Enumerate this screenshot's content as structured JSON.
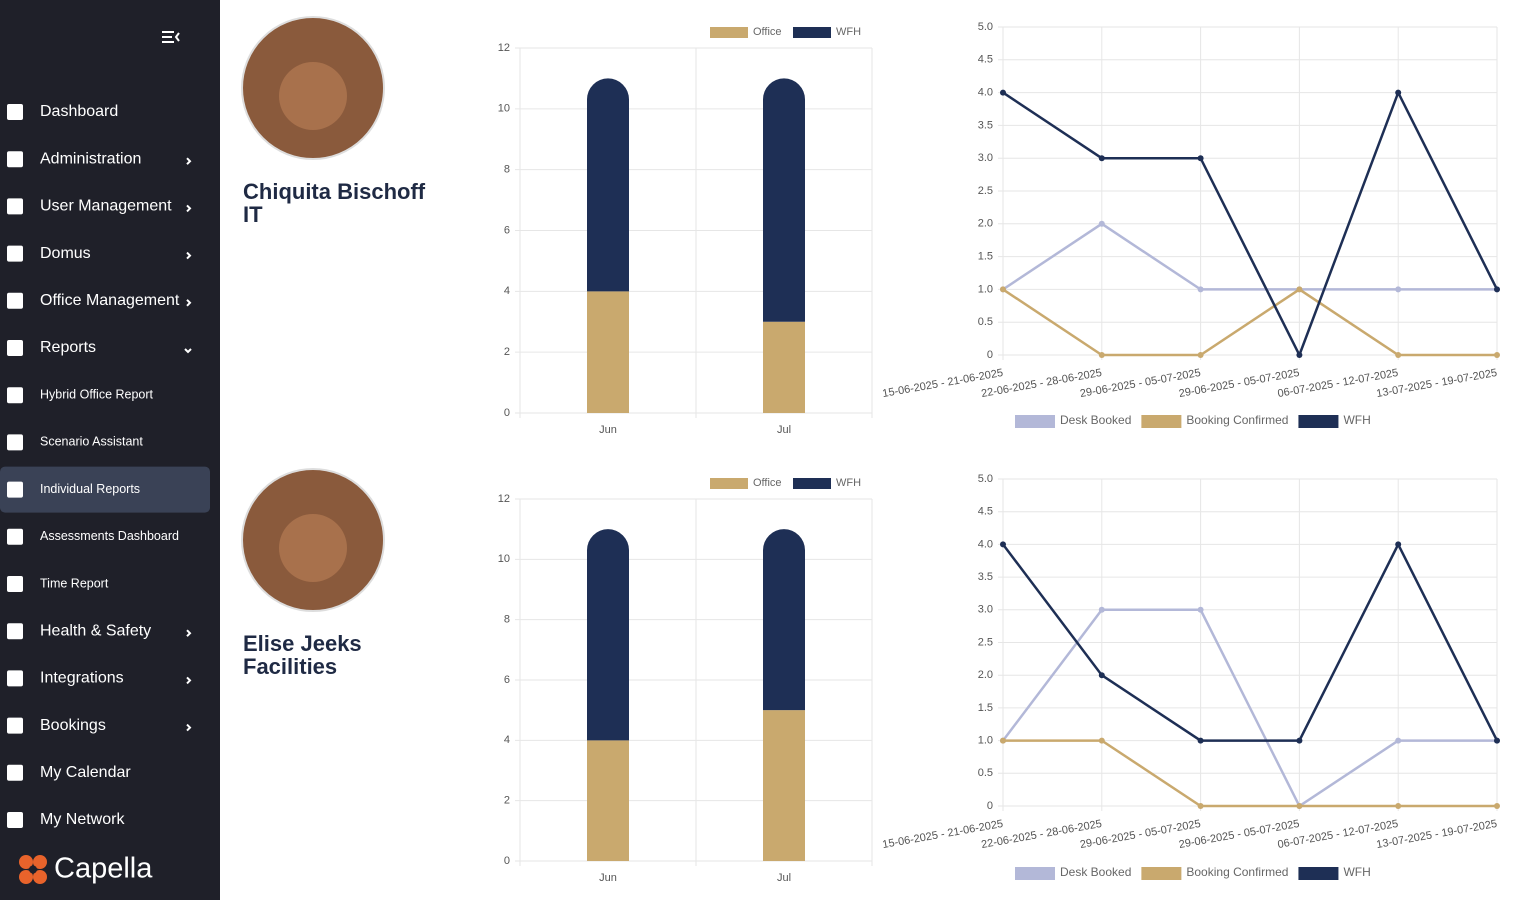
{
  "sidebar": {
    "brand": "Capella",
    "items": [
      {
        "label": "Dashboard"
      },
      {
        "label": "Administration",
        "arrow": "right"
      },
      {
        "label": "User Management",
        "arrow": "right"
      },
      {
        "label": "Domus",
        "arrow": "right"
      },
      {
        "label": "Office Management",
        "arrow": "right"
      },
      {
        "label": "Reports",
        "arrow": "down"
      },
      {
        "label": "Hybrid Office Report",
        "sub": true
      },
      {
        "label": "Scenario Assistant",
        "sub": true
      },
      {
        "label": "Individual Reports",
        "sub": true,
        "active": true
      },
      {
        "label": "Assessments Dashboard",
        "sub": true
      },
      {
        "label": "Time Report",
        "sub": true
      },
      {
        "label": "Health & Safety",
        "arrow": "right"
      },
      {
        "label": "Integrations",
        "arrow": "right"
      },
      {
        "label": "Bookings",
        "arrow": "right"
      },
      {
        "label": "My Calendar"
      },
      {
        "label": "My Network"
      }
    ]
  },
  "people": [
    {
      "name": "Chiquita Bischoff",
      "department": "IT"
    },
    {
      "name": "Elise Jeeks",
      "department": "Facilities"
    }
  ],
  "chart_data": [
    {
      "type": "bar",
      "stacked": true,
      "legend": "top",
      "grid": true,
      "categories": [
        "Jun",
        "Jul"
      ],
      "series": [
        {
          "name": "Office",
          "color": "#c9a96e",
          "values": [
            4,
            3
          ]
        },
        {
          "name": "WFH",
          "color": "#1e2f55",
          "values": [
            7,
            8
          ]
        }
      ],
      "ylim": [
        0,
        12
      ],
      "yticks": [
        0,
        2,
        4,
        6,
        8,
        10,
        12
      ]
    },
    {
      "type": "line",
      "legend": "bottom",
      "grid": true,
      "categories": [
        "15-06-2025 - 21-06-2025",
        "22-06-2025 - 28-06-2025",
        "29-06-2025 - 05-07-2025",
        "29-06-2025 - 05-07-2025",
        "06-07-2025 - 12-07-2025",
        "13-07-2025 - 19-07-2025"
      ],
      "series": [
        {
          "name": "Desk Booked",
          "color": "#b3b8d8",
          "values": [
            1,
            2,
            1,
            1,
            1,
            1
          ]
        },
        {
          "name": "Booking Confirmed",
          "color": "#c9a96e",
          "values": [
            1,
            0,
            0,
            1,
            0,
            0
          ]
        },
        {
          "name": "WFH",
          "color": "#1e2f55",
          "values": [
            4,
            3,
            3,
            0,
            4,
            1
          ]
        }
      ],
      "ylim": [
        0,
        5
      ],
      "yticks": [
        0,
        0.5,
        {
          "value": 1,
          "label": "1.0"
        },
        1.5,
        {
          "value": 2,
          "label": "2.0"
        },
        2.5,
        {
          "value": 3,
          "label": "3.0"
        },
        3.5,
        {
          "value": 4,
          "label": "4.0"
        },
        4.5,
        {
          "value": 5,
          "label": "5.0"
        }
      ]
    },
    {
      "type": "bar",
      "stacked": true,
      "legend": "top",
      "grid": true,
      "categories": [
        "Jun",
        "Jul"
      ],
      "series": [
        {
          "name": "Office",
          "color": "#c9a96e",
          "values": [
            4,
            5
          ]
        },
        {
          "name": "WFH",
          "color": "#1e2f55",
          "values": [
            7,
            6
          ]
        }
      ],
      "ylim": [
        0,
        12
      ],
      "yticks": [
        0,
        2,
        4,
        6,
        8,
        10,
        12
      ]
    },
    {
      "type": "line",
      "legend": "bottom",
      "grid": true,
      "categories": [
        "15-06-2025 - 21-06-2025",
        "22-06-2025 - 28-06-2025",
        "29-06-2025 - 05-07-2025",
        "29-06-2025 - 05-07-2025",
        "06-07-2025 - 12-07-2025",
        "13-07-2025 - 19-07-2025"
      ],
      "series": [
        {
          "name": "Desk Booked",
          "color": "#b3b8d8",
          "values": [
            1,
            3,
            3,
            0,
            1,
            1
          ]
        },
        {
          "name": "Booking Confirmed",
          "color": "#c9a96e",
          "values": [
            1,
            1,
            0,
            0,
            0,
            0
          ]
        },
        {
          "name": "WFH",
          "color": "#1e2f55",
          "values": [
            4,
            2,
            1,
            1,
            4,
            1
          ]
        }
      ],
      "ylim": [
        0,
        5
      ],
      "yticks": [
        0,
        0.5,
        {
          "value": 1,
          "label": "1.0"
        },
        1.5,
        {
          "value": 2,
          "label": "2.0"
        },
        2.5,
        {
          "value": 3,
          "label": "3.0"
        },
        3.5,
        {
          "value": 4,
          "label": "4.0"
        },
        4.5,
        {
          "value": 5,
          "label": "5.0"
        }
      ]
    }
  ]
}
